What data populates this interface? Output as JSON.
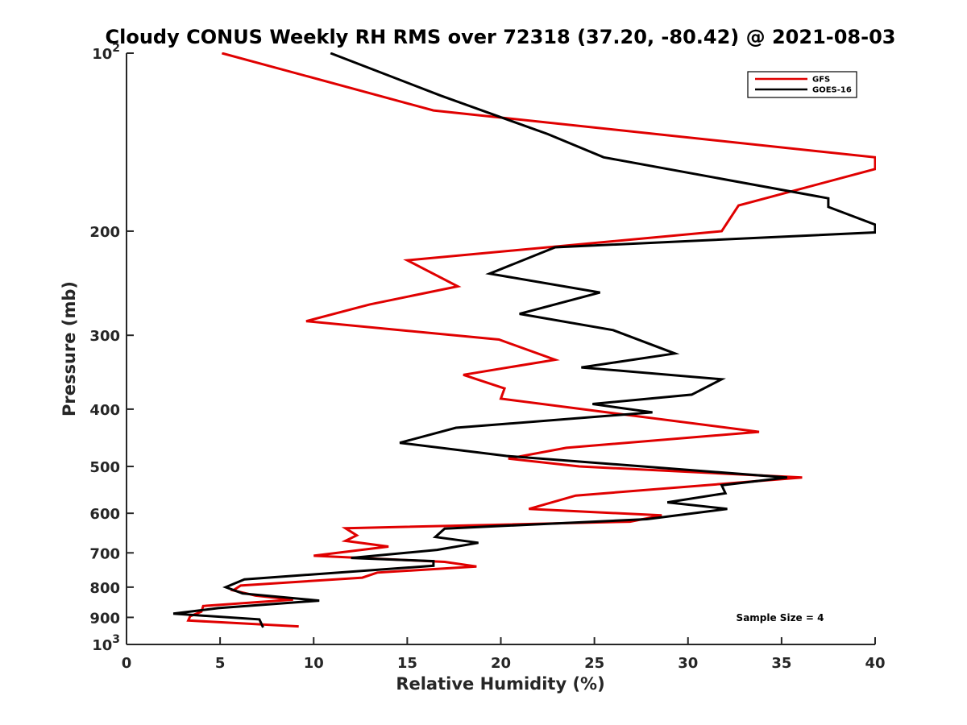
{
  "chart_data": {
    "type": "line",
    "title": "Cloudy CONUS Weekly RH RMS over 72318 (37.20, -80.42) @ 2021-08-03",
    "xlabel": "Relative Humidity (%)",
    "ylabel": "Pressure (mb)",
    "xlim": [
      0,
      40
    ],
    "ylim": [
      100,
      1000
    ],
    "yscale": "log",
    "yreverse": true,
    "grid": false,
    "legend_position": "top-right",
    "x_ticks": [
      0,
      5,
      10,
      15,
      20,
      25,
      30,
      35,
      40
    ],
    "x_tick_labels": [
      "0",
      "5",
      "10",
      "15",
      "20",
      "25",
      "30",
      "35",
      "40"
    ],
    "y_ticks": [
      {
        "value": 100,
        "base": "10",
        "exp": "2"
      },
      {
        "value": 200,
        "label": "200"
      },
      {
        "value": 300,
        "label": "300"
      },
      {
        "value": 400,
        "label": "400"
      },
      {
        "value": 500,
        "label": "500"
      },
      {
        "value": 600,
        "label": "600"
      },
      {
        "value": 700,
        "label": "700"
      },
      {
        "value": 800,
        "label": "800"
      },
      {
        "value": 900,
        "label": "900"
      },
      {
        "value": 1000,
        "base": "10",
        "exp": "3"
      }
    ],
    "series": [
      {
        "name": "GFS",
        "color": "#e00000",
        "points": [
          [
            5.1,
            100
          ],
          [
            16.4,
            125
          ],
          [
            40.0,
            150
          ],
          [
            40.0,
            157
          ],
          [
            32.7,
            181
          ],
          [
            31.8,
            200
          ],
          [
            15.0,
            224
          ],
          [
            17.7,
            248
          ],
          [
            13.0,
            266
          ],
          [
            9.6,
            284
          ],
          [
            19.9,
            305
          ],
          [
            22.9,
            330
          ],
          [
            18.0,
            350
          ],
          [
            20.2,
            369
          ],
          [
            20.0,
            384
          ],
          [
            33.8,
            437
          ],
          [
            23.5,
            465
          ],
          [
            20.4,
            485
          ],
          [
            24.2,
            500
          ],
          [
            36.1,
            522
          ],
          [
            24.0,
            560
          ],
          [
            21.5,
            590
          ],
          [
            28.6,
            605
          ],
          [
            26.9,
            620
          ],
          [
            11.7,
            636
          ],
          [
            12.3,
            654
          ],
          [
            11.7,
            668
          ],
          [
            14.0,
            683
          ],
          [
            10.0,
            708
          ],
          [
            17.0,
            725
          ],
          [
            18.7,
            738
          ],
          [
            13.4,
            756
          ],
          [
            12.6,
            771
          ],
          [
            6.1,
            795
          ],
          [
            5.7,
            810
          ],
          [
            6.9,
            827
          ],
          [
            8.9,
            840
          ],
          [
            4.1,
            861
          ],
          [
            4.0,
            880
          ],
          [
            3.4,
            896
          ],
          [
            3.3,
            911
          ],
          [
            9.2,
            932
          ]
        ]
      },
      {
        "name": "GOES-16",
        "color": "#000000",
        "points": [
          [
            10.9,
            100
          ],
          [
            16.8,
            118
          ],
          [
            22.5,
            137
          ],
          [
            25.5,
            150
          ],
          [
            37.5,
            176
          ],
          [
            37.5,
            182
          ],
          [
            40.0,
            195
          ],
          [
            40.0,
            201
          ],
          [
            22.9,
            213
          ],
          [
            19.4,
            236
          ],
          [
            25.3,
            254
          ],
          [
            21.0,
            276
          ],
          [
            26.0,
            294
          ],
          [
            29.3,
            322
          ],
          [
            24.3,
            340
          ],
          [
            31.8,
            356
          ],
          [
            30.2,
            378
          ],
          [
            24.9,
            392
          ],
          [
            28.1,
            405
          ],
          [
            17.6,
            430
          ],
          [
            14.6,
            456
          ],
          [
            20.3,
            480
          ],
          [
            35.3,
            522
          ],
          [
            31.8,
            538
          ],
          [
            32.0,
            555
          ],
          [
            28.9,
            575
          ],
          [
            32.1,
            590
          ],
          [
            27.8,
            614
          ],
          [
            17.0,
            637
          ],
          [
            16.5,
            658
          ],
          [
            18.8,
            673
          ],
          [
            16.6,
            692
          ],
          [
            12.0,
            714
          ],
          [
            16.4,
            723
          ],
          [
            16.4,
            736
          ],
          [
            6.3,
            776
          ],
          [
            5.3,
            800
          ],
          [
            6.2,
            820
          ],
          [
            10.3,
            843
          ],
          [
            4.9,
            868
          ],
          [
            2.5,
            887
          ],
          [
            7.1,
            907
          ],
          [
            7.3,
            936
          ]
        ]
      }
    ],
    "annotation": "Sample Size = 4"
  }
}
